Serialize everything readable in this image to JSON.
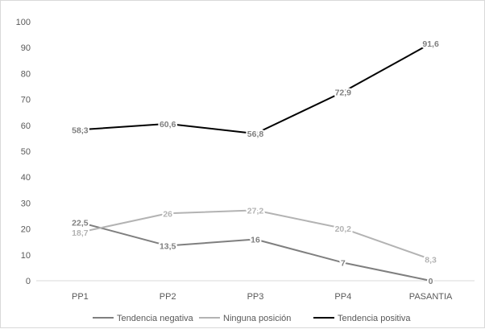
{
  "chart_data": {
    "type": "line",
    "categories": [
      "PP1",
      "PP2",
      "PP3",
      "PP4",
      "PASANTIA"
    ],
    "series": [
      {
        "name": "Tendencia negativa",
        "values": [
          22.5,
          13.5,
          16,
          7,
          0
        ],
        "labels": [
          "22,5",
          "13,5",
          "16",
          "7",
          "0"
        ],
        "color": "#7f7f7f"
      },
      {
        "name": "Ninguna posición",
        "values": [
          18.7,
          26,
          27.2,
          20.2,
          8.3
        ],
        "labels": [
          "18,7",
          "26",
          "27,2",
          "20,2",
          "8,3"
        ],
        "color": "#b3b3b3"
      },
      {
        "name": "Tendencia positiva",
        "values": [
          58.3,
          60.6,
          56.8,
          72.9,
          91.6
        ],
        "labels": [
          "58,3",
          "60,6",
          "56,8",
          "72,9",
          "91,6"
        ],
        "color": "#000000"
      }
    ],
    "yticks": [
      "0",
      "10",
      "20",
      "30",
      "40",
      "50",
      "60",
      "70",
      "80",
      "90",
      "100"
    ],
    "ylim": [
      0,
      100
    ],
    "grid": false,
    "legend_position": "bottom"
  }
}
